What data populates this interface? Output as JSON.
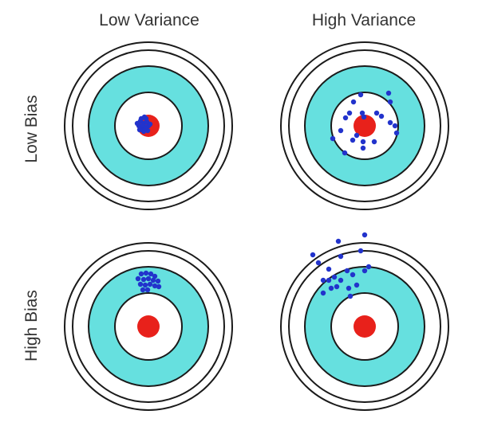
{
  "labels": {
    "col_low_variance": "Low Variance",
    "col_high_variance": "High Variance",
    "row_low_bias": "Low Bias",
    "row_high_bias": "High Bias"
  },
  "colors": {
    "ring_stroke": "#1a1a1a",
    "ring_fill": "#ffffff",
    "cyan_band": "#66e0df",
    "bullseye": "#e8211b",
    "point": "#2233cc"
  },
  "panels": [
    {
      "name": "low-bias-low-variance",
      "points": "tight cluster on bullseye"
    },
    {
      "name": "low-bias-high-variance",
      "points": "scattered around bullseye"
    },
    {
      "name": "high-bias-low-variance",
      "points": "tight cluster off-center, upper"
    },
    {
      "name": "high-bias-high-variance",
      "points": "scattered off-center, upper-left"
    }
  ]
}
